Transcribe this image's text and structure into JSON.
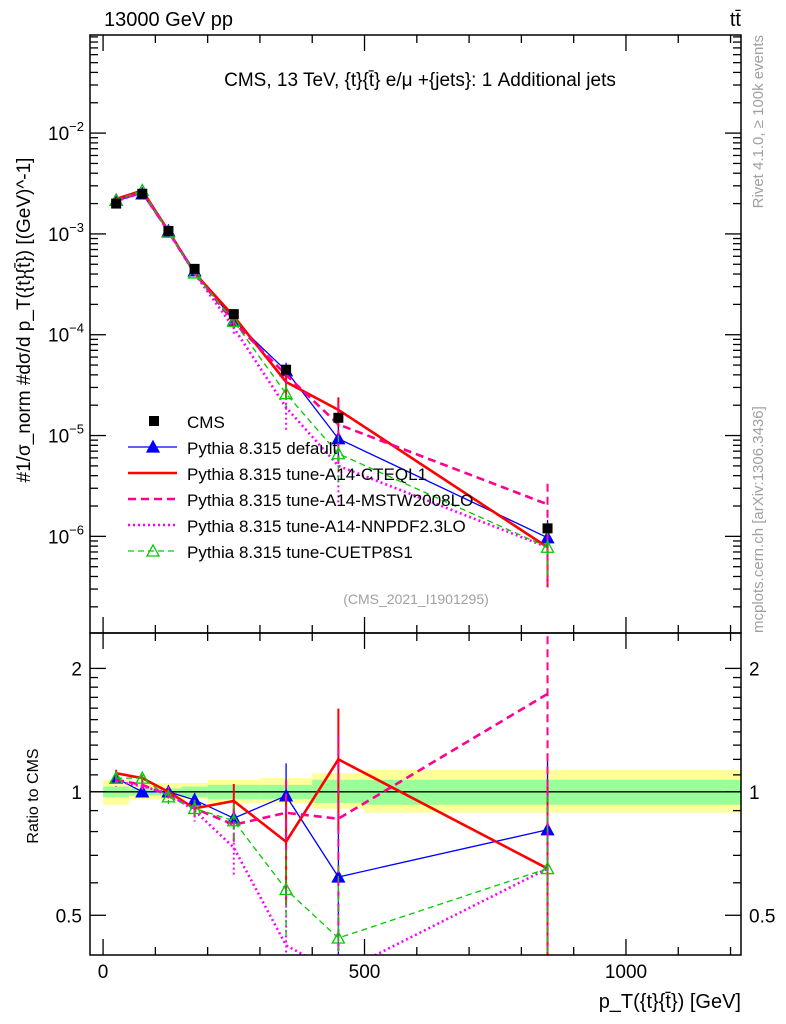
{
  "header": {
    "left": "13000 GeV pp",
    "right": "tt̄"
  },
  "side_texts": {
    "rivet": "Rivet 4.1.0, ≥ 100k events",
    "mcplots": "mcplots.cern.ch [arXiv:1306.3436]"
  },
  "chart_data": {
    "type": "line",
    "title": "CMS, 13 TeV, {t}{t̄} e/μ +{jets}: 1 Additional jets",
    "analysis_id": "(CMS_2021_I1901295)",
    "xlabel": "p_T({t}{t̄}) [GeV]",
    "ylabel": "#1/σ_norm #dσ/d p_T({t}{t̄}) [(GeV)^-1]",
    "ratio_ylabel": "Ratio to CMS",
    "x": [
      25,
      75,
      125,
      175,
      250,
      350,
      450,
      850
    ],
    "xlim": [
      -25,
      1220
    ],
    "ylim": [
      1.1e-07,
      0.094
    ],
    "yscale": "log",
    "ratio_ylim": [
      0.4,
      2.44
    ],
    "xticks": [
      "0",
      "500",
      "1000"
    ],
    "yticks": [
      "10^-2",
      "10^-3",
      "10^-4",
      "10^-5",
      "10^-6"
    ],
    "ratio_yticks": [
      "2",
      "1",
      "0.5"
    ],
    "legend_placement": "lower-left",
    "data": {
      "name": "CMS",
      "values": [
        0.002,
        0.0025,
        0.00107,
        0.00045,
        0.00016,
        4.5e-05,
        1.5e-05,
        1.2e-06
      ]
    },
    "band_total": {
      "up": [
        1.07,
        1.05,
        1.05,
        1.05,
        1.07,
        1.08,
        1.11,
        1.13
      ],
      "down": [
        0.93,
        0.96,
        0.96,
        0.96,
        0.94,
        0.94,
        0.91,
        0.89
      ]
    },
    "band_stat": {
      "up": [
        1.03,
        1.02,
        1.02,
        1.03,
        1.04,
        1.04,
        1.07,
        1.07
      ],
      "down": [
        0.97,
        0.98,
        0.98,
        0.97,
        0.96,
        0.96,
        0.94,
        0.93
      ]
    },
    "bin_edges": [
      0,
      50,
      100,
      150,
      200,
      300,
      400,
      500,
      1220
    ],
    "series": [
      {
        "name": "Pythia 8.315 default",
        "color": "#0000ff",
        "style": "solid",
        "marker": "triangle-filled",
        "values": [
          0.00216,
          0.0025,
          0.00107,
          0.00043,
          0.000138,
          4.4e-05,
          9.3e-06,
          9.7e-07
        ],
        "rel_err": [
          0.02,
          0.02,
          0.03,
          0.04,
          0.06,
          0.2,
          0.4,
          0.5
        ]
      },
      {
        "name": "Pythia 8.315 tune-A14-CTEQL1",
        "color": "#ff0000",
        "style": "solid-thick",
        "marker": "none",
        "values": [
          0.00222,
          0.0027,
          0.00107,
          0.00041,
          0.000152,
          3.4e-05,
          1.8e-05,
          7.8e-07
        ],
        "rel_err": [
          0.02,
          0.02,
          0.03,
          0.04,
          0.1,
          0.3,
          0.33,
          0.6
        ]
      },
      {
        "name": "Pythia 8.315 tune-A14-MSTW2008LO",
        "color": "#ff0090",
        "style": "dashed",
        "marker": "none",
        "values": [
          0.00214,
          0.0026,
          0.00105,
          0.00041,
          0.000133,
          4e-05,
          1.29e-05,
          2.08e-06
        ],
        "rel_err": [
          0.02,
          0.02,
          0.03,
          0.05,
          0.1,
          0.2,
          0.6,
          0.6
        ]
      },
      {
        "name": "Pythia 8.315 tune-A14-NNPDF2.3LO",
        "color": "#ff00ff",
        "style": "dotted",
        "marker": "none",
        "values": [
          0.00212,
          0.00258,
          0.00106,
          0.000405,
          0.000117,
          1.9e-05,
          5e-06,
          7.8e-07
        ],
        "rel_err": [
          0.03,
          0.02,
          0.04,
          0.06,
          0.15,
          0.4,
          0.6,
          0.6
        ]
      },
      {
        "name": "Pythia 8.315 tune-CUETP8S1",
        "color": "#00cc00",
        "style": "dashed-thin",
        "marker": "triangle-open",
        "values": [
          0.00216,
          0.0027,
          0.00104,
          0.00041,
          0.000136,
          2.6e-05,
          6.6e-06,
          7.8e-07
        ],
        "rel_err": [
          0.03,
          0.02,
          0.04,
          0.05,
          0.1,
          0.25,
          0.5,
          0.5
        ]
      }
    ]
  }
}
